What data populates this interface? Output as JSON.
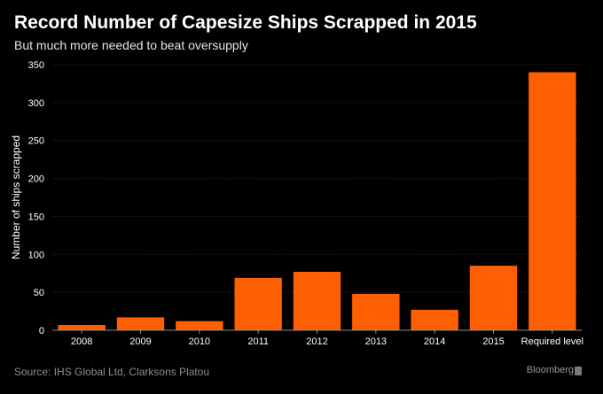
{
  "header": {
    "title": "Record Number of Capesize Ships Scrapped in 2015",
    "subtitle": "But much more needed to beat oversupply"
  },
  "chart_data": {
    "type": "bar",
    "categories": [
      "2008",
      "2009",
      "2010",
      "2011",
      "2012",
      "2013",
      "2014",
      "2015",
      "Required level"
    ],
    "values": [
      7,
      17,
      12,
      69,
      77,
      48,
      27,
      85,
      340
    ],
    "ylabel": "Number of ships scrapped",
    "xlabel": "",
    "ylim": [
      0,
      350
    ],
    "yticks": [
      0,
      50,
      100,
      150,
      200,
      250,
      300,
      350
    ],
    "grid": true,
    "bar_color": "#ff5f00",
    "grid_color": "#2e2e2e",
    "axis_color": "#8c8c8c"
  },
  "footer": {
    "source": "Source: IHS Global Ltd, Clarksons Platou",
    "brand": "Bloomberg",
    "brand_icon": "bloomberg-logo-icon"
  }
}
